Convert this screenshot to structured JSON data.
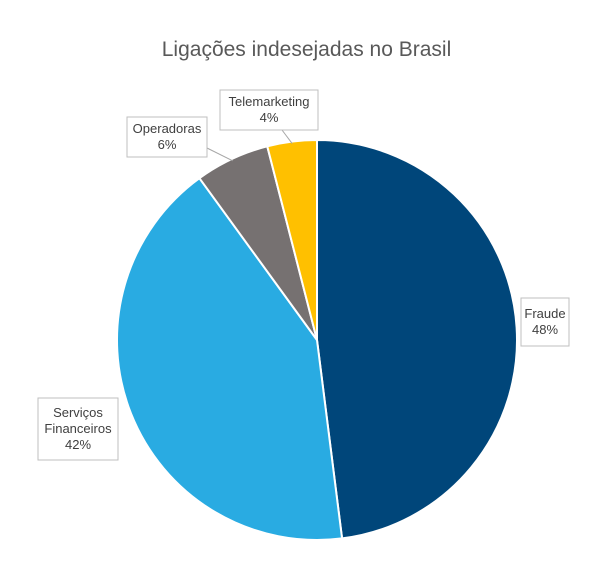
{
  "chart_data": {
    "type": "pie",
    "title": "Ligações indesejadas no Brasil",
    "slices": [
      {
        "label": "Fraude",
        "value": 48,
        "value_label": "48%",
        "color": "#00467a"
      },
      {
        "label": "Serviços Financeiros",
        "value": 42,
        "value_label": "42%",
        "color": "#29abe2"
      },
      {
        "label": "Operadoras",
        "value": 6,
        "value_label": "6%",
        "color": "#767171"
      },
      {
        "label": "Telemarketing",
        "value": 4,
        "value_label": "4%",
        "color": "#ffc000"
      }
    ],
    "start_angle_deg": 0,
    "direction": "clockwise",
    "legend": "none"
  }
}
